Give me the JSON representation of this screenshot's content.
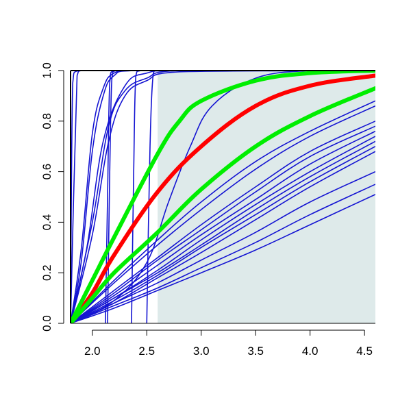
{
  "chart_data": {
    "type": "line",
    "title": "",
    "xlabel": "",
    "ylabel": "",
    "xlim": [
      1.8,
      4.6
    ],
    "ylim": [
      0.0,
      1.0
    ],
    "x_ticks": [
      2.0,
      2.5,
      3.0,
      3.5,
      4.0,
      4.5
    ],
    "x_tick_labels": [
      "2.0",
      "2.5",
      "3.0",
      "3.5",
      "4.0",
      "4.5"
    ],
    "y_ticks": [
      0.0,
      0.2,
      0.4,
      0.6,
      0.8,
      1.0
    ],
    "y_tick_labels": [
      "0.0",
      "0.2",
      "0.4",
      "0.6",
      "0.8",
      "1.0"
    ],
    "grid": false,
    "legend": "none",
    "shaded_region": {
      "x_from": 2.6,
      "x_to": 4.6,
      "color": "#deeaea"
    },
    "colors": {
      "blue": "#1414d2",
      "red": "#ff0000",
      "green": "#00ee00",
      "axis": "#000000"
    },
    "curve_form": "cumulative distribution curves rising from 0 at x = 1.8 toward 1.0",
    "highlighted_curves": [
      {
        "color": "red",
        "points": [
          [
            1.8,
            0
          ],
          [
            2.0,
            0.12
          ],
          [
            2.2,
            0.27
          ],
          [
            2.6,
            0.52
          ],
          [
            3.0,
            0.7
          ],
          [
            3.5,
            0.86
          ],
          [
            4.0,
            0.94
          ],
          [
            4.6,
            0.98
          ]
        ]
      },
      {
        "color": "green",
        "points": [
          [
            1.8,
            0
          ],
          [
            2.0,
            0.17
          ],
          [
            2.2,
            0.34
          ],
          [
            2.6,
            0.67
          ],
          [
            2.8,
            0.8
          ],
          [
            3.0,
            0.88
          ],
          [
            3.5,
            0.96
          ],
          [
            4.0,
            0.99
          ],
          [
            4.6,
            1.0
          ]
        ]
      },
      {
        "color": "green",
        "points": [
          [
            1.8,
            0
          ],
          [
            2.0,
            0.1
          ],
          [
            2.2,
            0.2
          ],
          [
            2.6,
            0.36
          ],
          [
            3.0,
            0.53
          ],
          [
            3.5,
            0.7
          ],
          [
            4.0,
            0.82
          ],
          [
            4.6,
            0.93
          ]
        ]
      }
    ],
    "blue_curves": [
      {
        "points": [
          [
            1.8,
            0
          ],
          [
            1.82,
            0.95
          ],
          [
            1.87,
            1.0
          ],
          [
            4.6,
            1.0
          ]
        ]
      },
      {
        "points": [
          [
            1.8,
            0
          ],
          [
            1.86,
            0.98
          ],
          [
            1.9,
            1.0
          ],
          [
            4.6,
            1.0
          ]
        ]
      },
      {
        "points": [
          [
            1.8,
            0
          ],
          [
            1.9,
            0.3
          ],
          [
            2.0,
            0.75
          ],
          [
            2.1,
            0.93
          ],
          [
            2.2,
            0.99
          ],
          [
            2.4,
            1.0
          ],
          [
            4.6,
            1.0
          ]
        ]
      },
      {
        "points": [
          [
            1.8,
            0
          ],
          [
            1.9,
            0.25
          ],
          [
            2.0,
            0.68
          ],
          [
            2.1,
            0.9
          ],
          [
            2.2,
            0.98
          ],
          [
            2.4,
            1.0
          ],
          [
            4.6,
            1.0
          ]
        ]
      },
      {
        "points": [
          [
            1.8,
            0
          ],
          [
            1.95,
            0.3
          ],
          [
            2.1,
            0.72
          ],
          [
            2.3,
            0.94
          ],
          [
            2.5,
            0.99
          ],
          [
            2.8,
            1.0
          ],
          [
            4.6,
            1.0
          ]
        ]
      },
      {
        "points": [
          [
            1.8,
            0
          ],
          [
            2.0,
            0.4
          ],
          [
            2.15,
            0.78
          ],
          [
            2.3,
            0.92
          ],
          [
            2.5,
            0.97
          ],
          [
            2.8,
            1.0
          ],
          [
            4.6,
            1.0
          ]
        ]
      },
      {
        "points": [
          [
            1.8,
            0
          ],
          [
            2.0,
            0.35
          ],
          [
            2.15,
            0.72
          ],
          [
            2.3,
            0.9
          ],
          [
            2.5,
            0.96
          ],
          [
            2.8,
            0.995
          ],
          [
            4.6,
            1.0
          ]
        ]
      },
      {
        "points": [
          [
            2.12,
            0
          ],
          [
            2.14,
            0.5
          ],
          [
            2.16,
            0.95
          ],
          [
            2.2,
            1.0
          ],
          [
            4.6,
            1.0
          ]
        ]
      },
      {
        "points": [
          [
            2.14,
            0
          ],
          [
            2.16,
            0.6
          ],
          [
            2.18,
            0.97
          ],
          [
            2.22,
            1.0
          ],
          [
            4.6,
            1.0
          ]
        ]
      },
      {
        "points": [
          [
            2.36,
            0
          ],
          [
            2.38,
            0.6
          ],
          [
            2.4,
            0.98
          ],
          [
            2.45,
            1.0
          ],
          [
            4.6,
            1.0
          ]
        ]
      },
      {
        "points": [
          [
            2.5,
            0
          ],
          [
            2.53,
            0.7
          ],
          [
            2.56,
            0.99
          ],
          [
            2.6,
            1.0
          ],
          [
            4.6,
            1.0
          ]
        ]
      },
      {
        "points": [
          [
            1.8,
            0
          ],
          [
            2.2,
            0.09
          ],
          [
            2.5,
            0.24
          ],
          [
            2.7,
            0.48
          ],
          [
            2.9,
            0.7
          ],
          [
            3.1,
            0.86
          ],
          [
            3.5,
            0.97
          ],
          [
            4.0,
            1.0
          ],
          [
            4.6,
            1.0
          ]
        ]
      },
      {
        "points": [
          [
            1.8,
            0
          ],
          [
            2.2,
            0.17
          ],
          [
            2.6,
            0.33
          ],
          [
            3.0,
            0.48
          ],
          [
            3.5,
            0.64
          ],
          [
            4.0,
            0.76
          ],
          [
            4.6,
            0.88
          ]
        ]
      },
      {
        "points": [
          [
            1.8,
            0
          ],
          [
            2.2,
            0.16
          ],
          [
            2.6,
            0.31
          ],
          [
            3.0,
            0.45
          ],
          [
            3.5,
            0.61
          ],
          [
            4.0,
            0.74
          ],
          [
            4.6,
            0.86
          ]
        ]
      },
      {
        "points": [
          [
            1.8,
            0
          ],
          [
            2.2,
            0.13
          ],
          [
            2.6,
            0.26
          ],
          [
            3.0,
            0.39
          ],
          [
            3.5,
            0.54
          ],
          [
            4.0,
            0.68
          ],
          [
            4.6,
            0.8
          ]
        ]
      },
      {
        "points": [
          [
            1.8,
            0
          ],
          [
            2.2,
            0.12
          ],
          [
            2.6,
            0.25
          ],
          [
            3.0,
            0.37
          ],
          [
            3.5,
            0.52
          ],
          [
            4.0,
            0.66
          ],
          [
            4.6,
            0.78
          ]
        ]
      },
      {
        "points": [
          [
            1.8,
            0
          ],
          [
            2.2,
            0.11
          ],
          [
            2.6,
            0.23
          ],
          [
            3.0,
            0.35
          ],
          [
            3.5,
            0.49
          ],
          [
            4.0,
            0.63
          ],
          [
            4.6,
            0.76
          ]
        ]
      },
      {
        "points": [
          [
            1.8,
            0
          ],
          [
            2.2,
            0.1
          ],
          [
            2.6,
            0.21
          ],
          [
            3.0,
            0.33
          ],
          [
            3.5,
            0.47
          ],
          [
            4.0,
            0.6
          ],
          [
            4.6,
            0.74
          ]
        ]
      },
      {
        "points": [
          [
            1.8,
            0
          ],
          [
            2.2,
            0.1
          ],
          [
            2.6,
            0.2
          ],
          [
            3.0,
            0.31
          ],
          [
            3.5,
            0.45
          ],
          [
            4.0,
            0.58
          ],
          [
            4.6,
            0.72
          ]
        ]
      },
      {
        "points": [
          [
            1.8,
            0
          ],
          [
            2.2,
            0.09
          ],
          [
            2.6,
            0.19
          ],
          [
            3.0,
            0.3
          ],
          [
            3.5,
            0.43
          ],
          [
            4.0,
            0.56
          ],
          [
            4.6,
            0.7
          ]
        ]
      },
      {
        "points": [
          [
            1.8,
            0
          ],
          [
            2.2,
            0.08
          ],
          [
            2.6,
            0.18
          ],
          [
            3.0,
            0.28
          ],
          [
            3.5,
            0.41
          ],
          [
            4.0,
            0.54
          ],
          [
            4.6,
            0.68
          ]
        ]
      },
      {
        "points": [
          [
            1.8,
            0
          ],
          [
            2.2,
            0.08
          ],
          [
            2.6,
            0.16
          ],
          [
            3.0,
            0.25
          ],
          [
            3.5,
            0.36
          ],
          [
            4.0,
            0.48
          ],
          [
            4.6,
            0.6
          ]
        ]
      },
      {
        "points": [
          [
            1.8,
            0
          ],
          [
            2.2,
            0.07
          ],
          [
            2.6,
            0.14
          ],
          [
            3.0,
            0.22
          ],
          [
            3.5,
            0.32
          ],
          [
            4.0,
            0.43
          ],
          [
            4.6,
            0.55
          ]
        ]
      },
      {
        "points": [
          [
            1.8,
            0
          ],
          [
            2.2,
            0.06
          ],
          [
            2.6,
            0.13
          ],
          [
            3.0,
            0.2
          ],
          [
            3.5,
            0.29
          ],
          [
            4.0,
            0.39
          ],
          [
            4.6,
            0.51
          ]
        ]
      }
    ]
  }
}
